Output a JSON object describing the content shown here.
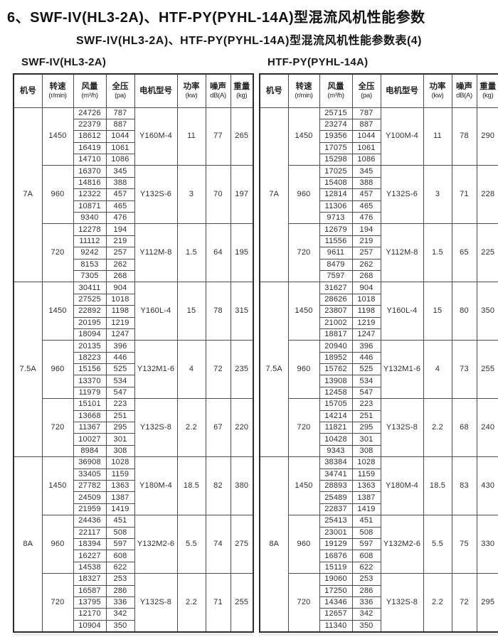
{
  "page": {
    "title": "6、SWF-IV(HL3-2A)、HTF-PY(PYHL-14A)型混流风机性能参数",
    "subtitle": "SWF-IV(HL3-2A)、HTF-PY(PYHL-14A)型混流风机性能参数表(4)"
  },
  "columns": [
    {
      "l1": "机号",
      "l2": ""
    },
    {
      "l1": "转速",
      "l2": "(r/min)"
    },
    {
      "l1": "风量",
      "l2": "(m³/h)"
    },
    {
      "l1": "全压",
      "l2": "(pa)"
    },
    {
      "l1": "电机型号",
      "l2": ""
    },
    {
      "l1": "功率",
      "l2": "(kw)"
    },
    {
      "l1": "噪声",
      "l2": "dB(A)"
    },
    {
      "l1": "重量",
      "l2": "(kg)"
    }
  ],
  "tables": [
    {
      "label": "SWF-IV(HL3-2A)",
      "groups": [
        {
          "machine": "7A",
          "blocks": [
            {
              "speed": "1450",
              "rows": [
                [
                  "24726",
                  "787"
                ],
                [
                  "22379",
                  "887"
                ],
                [
                  "18612",
                  "1044"
                ],
                [
                  "16419",
                  "1061"
                ],
                [
                  "14710",
                  "1086"
                ]
              ],
              "motor": "Y160M-4",
              "power": "11",
              "noise": "77",
              "weight": "265"
            },
            {
              "speed": "960",
              "rows": [
                [
                  "16370",
                  "345"
                ],
                [
                  "14816",
                  "388"
                ],
                [
                  "12322",
                  "457"
                ],
                [
                  "10871",
                  "465"
                ],
                [
                  "9340",
                  "476"
                ]
              ],
              "motor": "Y132S-6",
              "power": "3",
              "noise": "70",
              "weight": "197"
            },
            {
              "speed": "720",
              "rows": [
                [
                  "12278",
                  "194"
                ],
                [
                  "11112",
                  "219"
                ],
                [
                  "9242",
                  "257"
                ],
                [
                  "8153",
                  "262"
                ],
                [
                  "7305",
                  "268"
                ]
              ],
              "motor": "Y112M-8",
              "power": "1.5",
              "noise": "64",
              "weight": "195"
            }
          ]
        },
        {
          "machine": "7.5A",
          "blocks": [
            {
              "speed": "1450",
              "rows": [
                [
                  "30411",
                  "904"
                ],
                [
                  "27525",
                  "1018"
                ],
                [
                  "22892",
                  "1198"
                ],
                [
                  "20195",
                  "1219"
                ],
                [
                  "18094",
                  "1247"
                ]
              ],
              "motor": "Y160L-4",
              "power": "15",
              "noise": "78",
              "weight": "315"
            },
            {
              "speed": "960",
              "rows": [
                [
                  "20135",
                  "396"
                ],
                [
                  "18223",
                  "446"
                ],
                [
                  "15156",
                  "525"
                ],
                [
                  "13370",
                  "534"
                ],
                [
                  "11979",
                  "547"
                ]
              ],
              "motor": "Y132M1-6",
              "power": "4",
              "noise": "72",
              "weight": "235"
            },
            {
              "speed": "720",
              "rows": [
                [
                  "15101",
                  "223"
                ],
                [
                  "13668",
                  "251"
                ],
                [
                  "11367",
                  "295"
                ],
                [
                  "10027",
                  "301"
                ],
                [
                  "8984",
                  "308"
                ]
              ],
              "motor": "Y132S-8",
              "power": "2.2",
              "noise": "67",
              "weight": "220"
            }
          ]
        },
        {
          "machine": "8A",
          "blocks": [
            {
              "speed": "1450",
              "rows": [
                [
                  "36908",
                  "1028"
                ],
                [
                  "33405",
                  "1159"
                ],
                [
                  "27782",
                  "1363"
                ],
                [
                  "24509",
                  "1387"
                ],
                [
                  "21959",
                  "1419"
                ]
              ],
              "motor": "Y180M-4",
              "power": "18.5",
              "noise": "82",
              "weight": "380"
            },
            {
              "speed": "960",
              "rows": [
                [
                  "24436",
                  "451"
                ],
                [
                  "22117",
                  "508"
                ],
                [
                  "18394",
                  "597"
                ],
                [
                  "16227",
                  "608"
                ],
                [
                  "14538",
                  "622"
                ]
              ],
              "motor": "Y132M2-6",
              "power": "5.5",
              "noise": "74",
              "weight": "275"
            },
            {
              "speed": "720",
              "rows": [
                [
                  "18327",
                  "253"
                ],
                [
                  "16587",
                  "286"
                ],
                [
                  "13795",
                  "336"
                ],
                [
                  "12170",
                  "342"
                ],
                [
                  "10904",
                  "350"
                ]
              ],
              "motor": "Y132S-8",
              "power": "2.2",
              "noise": "71",
              "weight": "255"
            }
          ]
        }
      ]
    },
    {
      "label": "HTF-PY(PYHL-14A)",
      "groups": [
        {
          "machine": "7A",
          "blocks": [
            {
              "speed": "1450",
              "rows": [
                [
                  "25715",
                  "787"
                ],
                [
                  "23274",
                  "887"
                ],
                [
                  "19356",
                  "1044"
                ],
                [
                  "17075",
                  "1061"
                ],
                [
                  "15298",
                  "1086"
                ]
              ],
              "motor": "Y100M-4",
              "power": "11",
              "noise": "78",
              "weight": "290"
            },
            {
              "speed": "960",
              "rows": [
                [
                  "17025",
                  "345"
                ],
                [
                  "15408",
                  "388"
                ],
                [
                  "12814",
                  "457"
                ],
                [
                  "11306",
                  "465"
                ],
                [
                  "9713",
                  "476"
                ]
              ],
              "motor": "Y132S-6",
              "power": "3",
              "noise": "71",
              "weight": "228"
            },
            {
              "speed": "720",
              "rows": [
                [
                  "12679",
                  "194"
                ],
                [
                  "11556",
                  "219"
                ],
                [
                  "9611",
                  "257"
                ],
                [
                  "8479",
                  "262"
                ],
                [
                  "7597",
                  "268"
                ]
              ],
              "motor": "Y112M-8",
              "power": "1.5",
              "noise": "65",
              "weight": "225"
            }
          ]
        },
        {
          "machine": "7.5A",
          "blocks": [
            {
              "speed": "1450",
              "rows": [
                [
                  "31627",
                  "904"
                ],
                [
                  "28626",
                  "1018"
                ],
                [
                  "23807",
                  "1198"
                ],
                [
                  "21002",
                  "1219"
                ],
                [
                  "18817",
                  "1247"
                ]
              ],
              "motor": "Y160L-4",
              "power": "15",
              "noise": "80",
              "weight": "350"
            },
            {
              "speed": "960",
              "rows": [
                [
                  "20940",
                  "396"
                ],
                [
                  "18952",
                  "446"
                ],
                [
                  "15762",
                  "525"
                ],
                [
                  "13908",
                  "534"
                ],
                [
                  "12458",
                  "547"
                ]
              ],
              "motor": "Y132M1-6",
              "power": "4",
              "noise": "73",
              "weight": "255"
            },
            {
              "speed": "720",
              "rows": [
                [
                  "15705",
                  "223"
                ],
                [
                  "14214",
                  "251"
                ],
                [
                  "11821",
                  "295"
                ],
                [
                  "10428",
                  "301"
                ],
                [
                  "9343",
                  "308"
                ]
              ],
              "motor": "Y132S-8",
              "power": "2.2",
              "noise": "68",
              "weight": "240"
            }
          ]
        },
        {
          "machine": "8A",
          "blocks": [
            {
              "speed": "1450",
              "rows": [
                [
                  "38384",
                  "1028"
                ],
                [
                  "34741",
                  "1159"
                ],
                [
                  "28893",
                  "1363"
                ],
                [
                  "25489",
                  "1387"
                ],
                [
                  "22837",
                  "1419"
                ]
              ],
              "motor": "Y180M-4",
              "power": "18.5",
              "noise": "83",
              "weight": "430"
            },
            {
              "speed": "960",
              "rows": [
                [
                  "25413",
                  "451"
                ],
                [
                  "23001",
                  "508"
                ],
                [
                  "19129",
                  "597"
                ],
                [
                  "16876",
                  "608"
                ],
                [
                  "15119",
                  "622"
                ]
              ],
              "motor": "Y132M2-6",
              "power": "5.5",
              "noise": "75",
              "weight": "330"
            },
            {
              "speed": "720",
              "rows": [
                [
                  "19060",
                  "253"
                ],
                [
                  "17250",
                  "286"
                ],
                [
                  "14346",
                  "336"
                ],
                [
                  "12657",
                  "342"
                ],
                [
                  "11340",
                  "350"
                ]
              ],
              "motor": "Y132S-8",
              "power": "2.2",
              "noise": "72",
              "weight": "295"
            }
          ]
        }
      ]
    }
  ]
}
